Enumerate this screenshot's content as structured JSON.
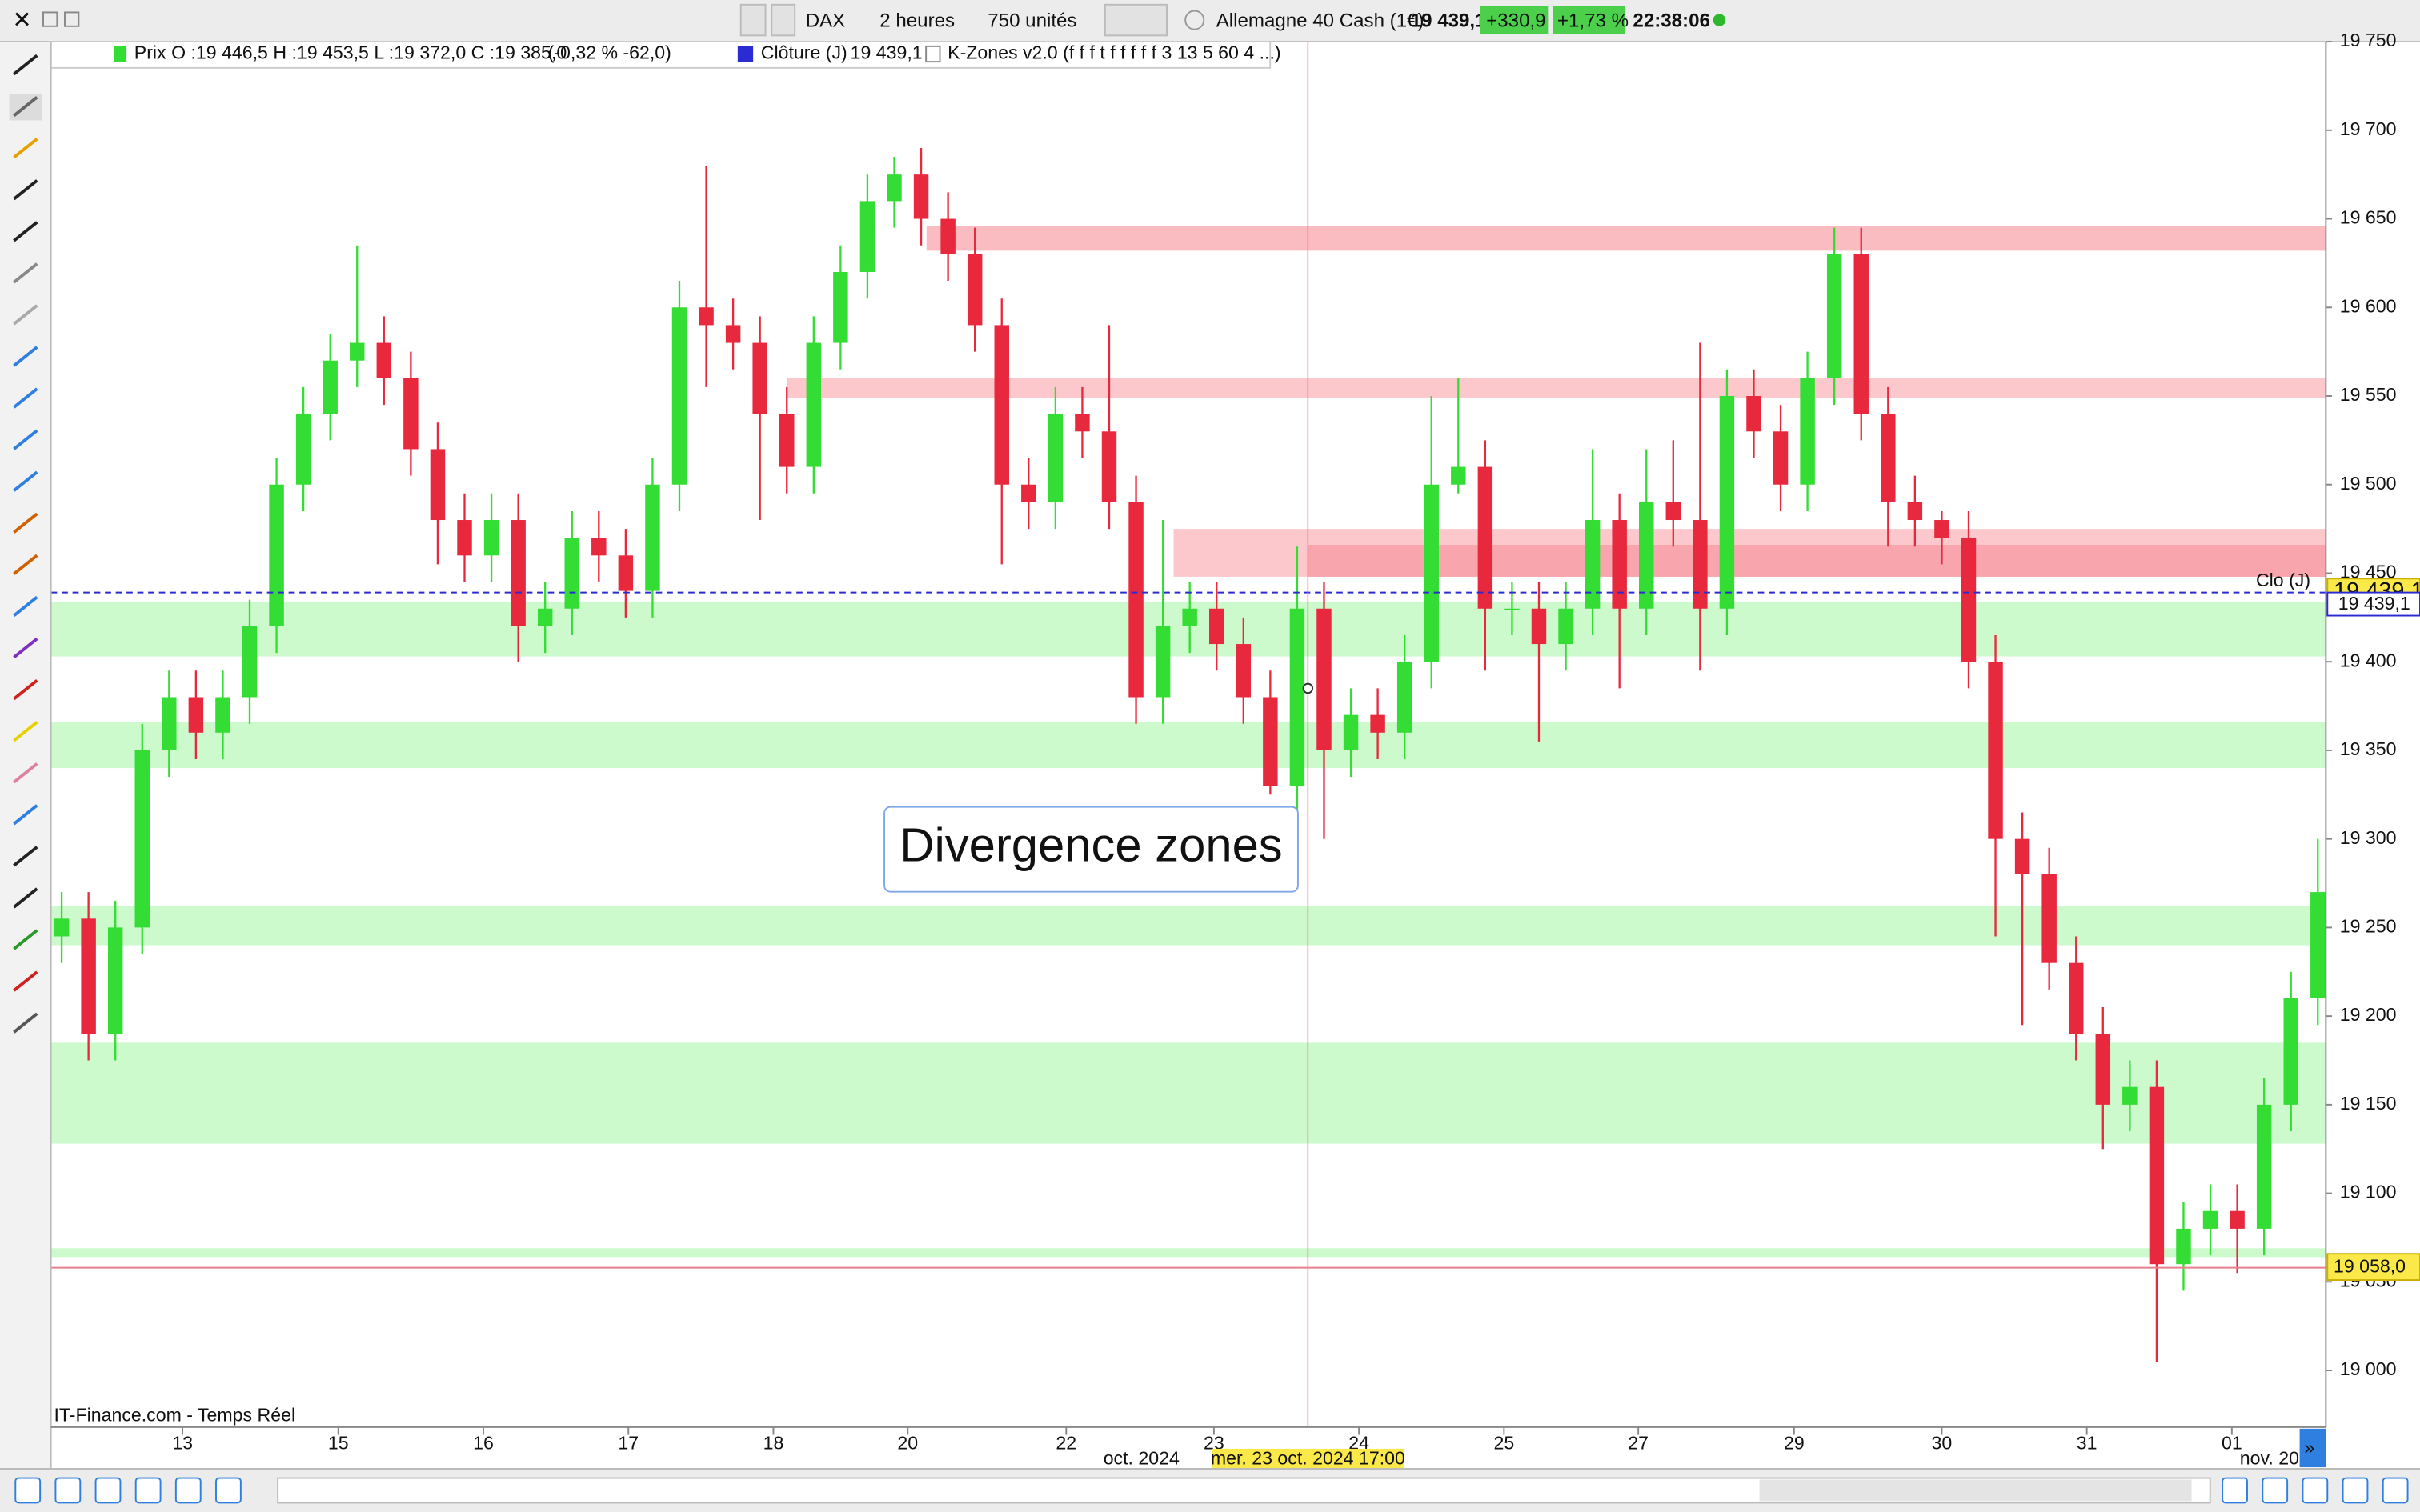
{
  "toolbar": {
    "symbol": "DAX",
    "period": "2 heures",
    "units": "750 unités",
    "instrument": "Allemagne 40 Cash (1€)",
    "last": "19 439,1",
    "change": "+330,9",
    "change_pct": "+1,73 %",
    "clock": "22:38:06"
  },
  "legend": {
    "price_name": "Prix",
    "ohlc": "O :19 446,5 H :19 453,5 L :19 372,0 C :19 385,0",
    "variation": "(-0,32 % -62,0)",
    "close_name": "Clôture (J)",
    "close_value": "19 439,1",
    "indicator": "K-Zones v2.0 (f f f t f f f f f 3 13 5 60 4 ...)"
  },
  "footer": {
    "source": "IT-Finance.com - Temps Réel"
  },
  "chart_data": {
    "type": "candlestick",
    "up_color": "#33dd33",
    "down_color": "#e8283c",
    "x": [
      0,
      1,
      2,
      3,
      4,
      5,
      6,
      7,
      8,
      9,
      10,
      11,
      12,
      13,
      14,
      15,
      16,
      17,
      18,
      19,
      20,
      21,
      22,
      23,
      24,
      25,
      26,
      27,
      28,
      29,
      30,
      31,
      32,
      33,
      34,
      35,
      36,
      37,
      38,
      39,
      40,
      41,
      42,
      43,
      44,
      45,
      46,
      47,
      48,
      49,
      50,
      51,
      52,
      53,
      54,
      55,
      56,
      57,
      58,
      59,
      60,
      61,
      62,
      63,
      64,
      65,
      66,
      67,
      68,
      69,
      70,
      71,
      72,
      73,
      74,
      75,
      76,
      77,
      78,
      79,
      80,
      81,
      82,
      83,
      84
    ],
    "open": [
      19245,
      19255,
      19190,
      19250,
      19350,
      19380,
      19360,
      19380,
      19420,
      19500,
      19540,
      19570,
      19580,
      19560,
      19520,
      19480,
      19460,
      19480,
      19420,
      19430,
      19470,
      19460,
      19440,
      19500,
      19600,
      19590,
      19580,
      19540,
      19510,
      19580,
      19620,
      19660,
      19675,
      19650,
      19630,
      19590,
      19500,
      19490,
      19540,
      19530,
      19490,
      19380,
      19420,
      19430,
      19410,
      19380,
      19330,
      19430,
      19350,
      19370,
      19360,
      19400,
      19500,
      19510,
      19430,
      19430,
      19410,
      19430,
      19480,
      19430,
      19490,
      19480,
      19430,
      19550,
      19530,
      19500,
      19560,
      19630,
      19540,
      19490,
      19480,
      19470,
      19400,
      19300,
      19280,
      19230,
      19190,
      19150,
      19160,
      19060,
      19080,
      19090,
      19080,
      19150,
      19210
    ],
    "high": [
      19270,
      19270,
      19265,
      19365,
      19395,
      19395,
      19395,
      19435,
      19515,
      19555,
      19585,
      19635,
      19595,
      19575,
      19535,
      19495,
      19495,
      19495,
      19445,
      19485,
      19485,
      19475,
      19515,
      19615,
      19680,
      19605,
      19595,
      19555,
      19595,
      19635,
      19675,
      19685,
      19690,
      19665,
      19645,
      19605,
      19515,
      19555,
      19555,
      19590,
      19505,
      19480,
      19445,
      19445,
      19425,
      19395,
      19465,
      19445,
      19385,
      19385,
      19415,
      19550,
      19560,
      19525,
      19445,
      19445,
      19445,
      19520,
      19495,
      19520,
      19525,
      19580,
      19565,
      19565,
      19545,
      19575,
      19645,
      19645,
      19555,
      19505,
      19485,
      19485,
      19415,
      19315,
      19295,
      19245,
      19205,
      19175,
      19175,
      19095,
      19105,
      19105,
      19165,
      19225,
      19300
    ],
    "low": [
      19230,
      19175,
      19175,
      19235,
      19335,
      19345,
      19345,
      19365,
      19405,
      19485,
      19525,
      19555,
      19545,
      19505,
      19455,
      19445,
      19445,
      19400,
      19405,
      19415,
      19445,
      19425,
      19425,
      19485,
      19555,
      19565,
      19480,
      19495,
      19495,
      19565,
      19605,
      19645,
      19635,
      19615,
      19575,
      19455,
      19475,
      19475,
      19515,
      19475,
      19365,
      19365,
      19405,
      19395,
      19365,
      19325,
      19315,
      19300,
      19335,
      19345,
      19345,
      19385,
      19495,
      19395,
      19415,
      19355,
      19395,
      19415,
      19385,
      19415,
      19465,
      19395,
      19415,
      19515,
      19485,
      19485,
      19545,
      19525,
      19465,
      19465,
      19455,
      19385,
      19245,
      19195,
      19215,
      19175,
      19125,
      19135,
      19005,
      19045,
      19065,
      19055,
      19065,
      19135,
      19195
    ],
    "close": [
      19255,
      19190,
      19250,
      19350,
      19380,
      19360,
      19380,
      19420,
      19500,
      19540,
      19570,
      19580,
      19560,
      19520,
      19480,
      19460,
      19480,
      19420,
      19430,
      19470,
      19460,
      19440,
      19500,
      19600,
      19590,
      19580,
      19540,
      19510,
      19580,
      19620,
      19660,
      19675,
      19650,
      19630,
      19590,
      19500,
      19490,
      19540,
      19530,
      19490,
      19380,
      19420,
      19430,
      19410,
      19380,
      19330,
      19430,
      19350,
      19370,
      19360,
      19400,
      19500,
      19510,
      19430,
      19430,
      19410,
      19430,
      19480,
      19430,
      19490,
      19480,
      19430,
      19550,
      19530,
      19500,
      19560,
      19630,
      19540,
      19490,
      19480,
      19470,
      19400,
      19300,
      19280,
      19230,
      19190,
      19150,
      19160,
      19060,
      19080,
      19090,
      19080,
      19150,
      19210,
      19270
    ],
    "xlim": [
      -0.4,
      84.3
    ],
    "ylim": [
      18968,
      19750
    ],
    "yticks": [
      {
        "value": 19000,
        "label": "19 000"
      },
      {
        "value": 19050,
        "label": "19 050"
      },
      {
        "value": 19100,
        "label": "19 100"
      },
      {
        "value": 19150,
        "label": "19 150"
      },
      {
        "value": 19200,
        "label": "19 200"
      },
      {
        "value": 19250,
        "label": "19 250"
      },
      {
        "value": 19300,
        "label": "19 300"
      },
      {
        "value": 19350,
        "label": "19 350"
      },
      {
        "value": 19400,
        "label": "19 400"
      },
      {
        "value": 19450,
        "label": "19 450"
      },
      {
        "value": 19500,
        "label": "19 500"
      },
      {
        "value": 19550,
        "label": "19 550"
      },
      {
        "value": 19600,
        "label": "19 600"
      },
      {
        "value": 19650,
        "label": "19 650"
      },
      {
        "value": 19700,
        "label": "19 700"
      },
      {
        "value": 19750,
        "label": "19 750"
      }
    ],
    "xticks": [
      {
        "value": 4.5,
        "label": "13"
      },
      {
        "value": 10.3,
        "label": "15"
      },
      {
        "value": 15.7,
        "label": "16"
      },
      {
        "value": 21.1,
        "label": "17"
      },
      {
        "value": 26.5,
        "label": "18"
      },
      {
        "value": 31.5,
        "label": "20"
      },
      {
        "value": 37.4,
        "label": "22"
      },
      {
        "value": 42.9,
        "label": "23"
      },
      {
        "value": 48.3,
        "label": "24"
      },
      {
        "value": 53.7,
        "label": "25"
      },
      {
        "value": 58.7,
        "label": "27"
      },
      {
        "value": 64.5,
        "label": "29"
      },
      {
        "value": 70.0,
        "label": "30"
      },
      {
        "value": 75.4,
        "label": "31"
      },
      {
        "value": 80.8,
        "label": "01"
      }
    ],
    "month_labels": [
      {
        "value": 40.2,
        "label": "oct. 2024"
      },
      {
        "value": 82.2,
        "label": "nov. 20"
      }
    ],
    "zones": [
      {
        "from": 19632,
        "to": 19646,
        "start": 32.2,
        "color": "#fbbcc1"
      },
      {
        "from": 19549,
        "to": 19560,
        "start": 27,
        "color": "#fcc8cc"
      },
      {
        "from": 19448,
        "to": 19475,
        "start": 41.4,
        "color": "#fcc8cc"
      },
      {
        "from": 19448,
        "to": 19466,
        "start": 46.4,
        "color": "#f8a5ad"
      },
      {
        "from": 19403,
        "to": 19434,
        "start": -0.4,
        "color": "#ccfacc"
      },
      {
        "from": 19340,
        "to": 19366,
        "start": -0.4,
        "color": "#ccfacc"
      },
      {
        "from": 19240,
        "to": 19262,
        "start": -0.4,
        "color": "#ccfacc"
      },
      {
        "from": 19128,
        "to": 19185,
        "start": -0.4,
        "color": "#ccfacc"
      },
      {
        "from": 19064,
        "to": 19069,
        "start": -0.4,
        "color": "#ccfacc"
      }
    ],
    "hlines": [
      {
        "name": "Clo (J)",
        "value": 19439.1,
        "label": "19 439,1",
        "color": "#2b2bd4",
        "dashed": true
      },
      {
        "value": 19058.0,
        "label": "19 058,0",
        "color": "#e8808c",
        "dashed": false
      }
    ],
    "crosshair": {
      "x": 46.4,
      "y": 19385,
      "label": "mer. 23 oct. 2024 17:00"
    },
    "annotation": "Divergence zones"
  }
}
